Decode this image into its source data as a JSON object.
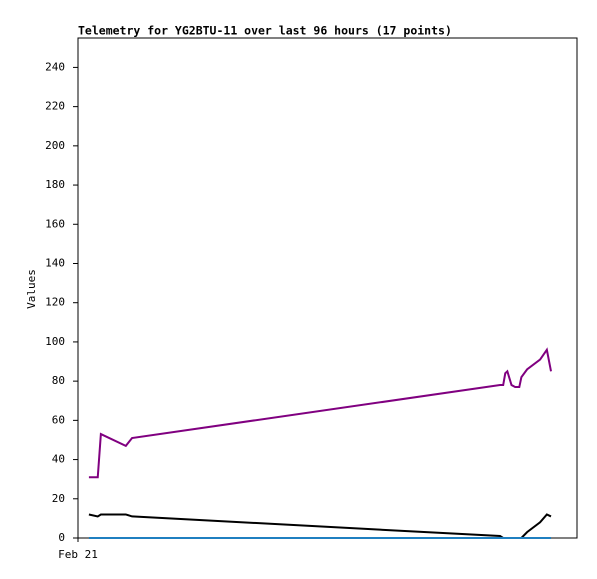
{
  "chart_data": {
    "type": "line",
    "title": "Telemetry for YG2BTU-11 over last 96 hours (17 points)",
    "y_label": "Values",
    "x": [
      2.1,
      3.8,
      4.4,
      9.2,
      10.4,
      81.2,
      81.8,
      82.2,
      82.6,
      83.4,
      84.1,
      84.9,
      85.3,
      86.4,
      88.9,
      90.2,
      91.0
    ],
    "xlim": [
      0,
      96
    ],
    "xticks": [
      {
        "value": 0,
        "label": "Feb 21"
      }
    ],
    "ylim": [
      0,
      255
    ],
    "yticks": [
      0,
      20,
      40,
      60,
      80,
      100,
      120,
      140,
      160,
      180,
      200,
      220,
      240
    ],
    "grid": false,
    "series": [
      {
        "color": "#800080",
        "values": [
          31,
          31,
          53,
          47,
          51,
          78,
          78,
          84,
          85,
          78,
          77,
          77,
          82,
          86,
          91,
          96,
          85
        ]
      },
      {
        "color": "#000000",
        "values": [
          12,
          11,
          12,
          12,
          11,
          1,
          0,
          0,
          0,
          0,
          0,
          0,
          0,
          3,
          8,
          12,
          11
        ]
      },
      {
        "color": "#1f7fc0",
        "values": [
          0,
          0,
          0,
          0,
          0,
          0,
          0,
          0,
          0,
          0,
          0,
          0,
          0,
          0,
          0,
          0,
          0
        ]
      }
    ]
  }
}
